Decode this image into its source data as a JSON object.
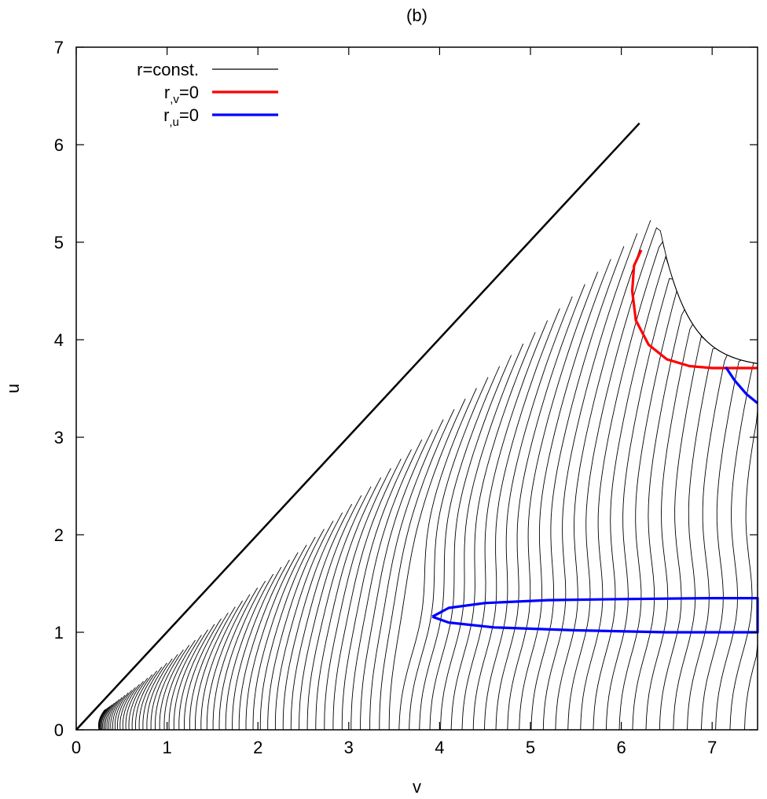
{
  "chart_data": {
    "type": "line",
    "title": "(b)",
    "xlabel": "v",
    "ylabel": "u",
    "xlim": [
      0,
      7.5
    ],
    "ylim": [
      0,
      7
    ],
    "xticks": [
      "0",
      "1",
      "2",
      "3",
      "4",
      "5",
      "6",
      "7"
    ],
    "yticks": [
      "0",
      "1",
      "2",
      "3",
      "4",
      "5",
      "6",
      "7"
    ],
    "grid": false,
    "legend_position": "top-left",
    "legend": [
      {
        "prefix": "r",
        "sub": "",
        "suffix": "=const.",
        "color": "#000000"
      },
      {
        "prefix": "r",
        "sub": ",v",
        "suffix": "=0",
        "color": "#ff0000"
      },
      {
        "prefix": "r",
        "sub": ",u",
        "suffix": "=0",
        "color": "#0000ff"
      }
    ],
    "series": [
      {
        "color": "#000000",
        "role": "boundary-diagonal",
        "points": [
          [
            0,
            0
          ],
          [
            6.2,
            6.22
          ]
        ]
      },
      {
        "color": "#ff0000",
        "role": "apparent-horizon",
        "points": [
          [
            6.22,
            4.92
          ],
          [
            6.14,
            4.76
          ],
          [
            6.12,
            4.5
          ],
          [
            6.16,
            4.2
          ],
          [
            6.3,
            3.95
          ],
          [
            6.5,
            3.8
          ],
          [
            6.75,
            3.73
          ],
          [
            7.0,
            3.71
          ],
          [
            7.5,
            3.71
          ]
        ]
      },
      {
        "color": "#0000ff",
        "role": "r-u-zero-upper",
        "points": [
          [
            7.15,
            3.72
          ],
          [
            7.25,
            3.58
          ],
          [
            7.38,
            3.44
          ],
          [
            7.5,
            3.35
          ]
        ]
      },
      {
        "color": "#0000ff",
        "role": "r-u-zero-lower",
        "points": [
          [
            3.92,
            1.16
          ],
          [
            4.1,
            1.25
          ],
          [
            4.5,
            1.3
          ],
          [
            5.2,
            1.33
          ],
          [
            6.0,
            1.34
          ],
          [
            7.0,
            1.35
          ],
          [
            7.5,
            1.35
          ],
          [
            7.5,
            1.0
          ],
          [
            6.5,
            1.0
          ],
          [
            5.5,
            1.02
          ],
          [
            4.6,
            1.05
          ],
          [
            4.1,
            1.1
          ],
          [
            3.92,
            1.16
          ]
        ]
      }
    ],
    "contour_family": {
      "color": "#000000",
      "note": "dense family of r=const. curves filling region between diagonal u=v and lower axis"
    }
  }
}
